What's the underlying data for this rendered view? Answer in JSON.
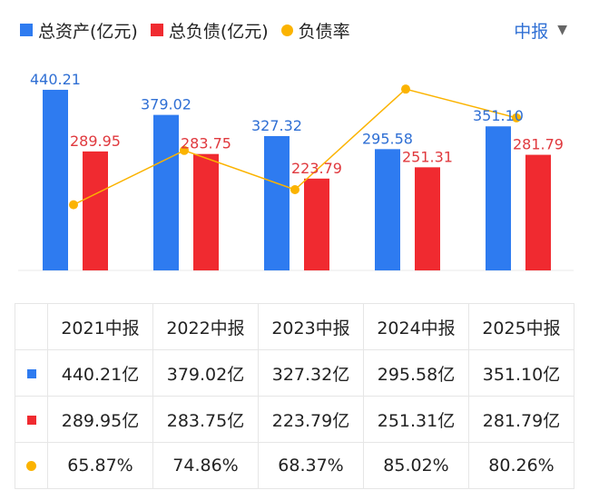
{
  "legend": [
    {
      "label": "总资产(亿元)",
      "color": "#2e7bf0",
      "shape": "square"
    },
    {
      "label": "总负债(亿元)",
      "color": "#f02a30",
      "shape": "square"
    },
    {
      "label": "负债率",
      "color": "#fbb300",
      "shape": "dot"
    }
  ],
  "period_selector": {
    "label": "中报",
    "icon": "caret-down-icon"
  },
  "chart_data": {
    "type": "bar",
    "categories": [
      "2021中报",
      "2022中报",
      "2023中报",
      "2024中报",
      "2025中报"
    ],
    "series": [
      {
        "name": "总资产(亿元)",
        "kind": "bar",
        "color": "#2e7bf0",
        "label_color": "#2f6fd4",
        "values": [
          440.21,
          379.02,
          327.32,
          295.58,
          351.1
        ],
        "labels": [
          "440.21",
          "379.02",
          "327.32",
          "295.58",
          "351.10"
        ]
      },
      {
        "name": "总负债(亿元)",
        "kind": "bar",
        "color": "#f02a30",
        "label_color": "#e0393e",
        "values": [
          289.95,
          283.75,
          223.79,
          251.31,
          281.79
        ],
        "labels": [
          "289.95",
          "283.75",
          "223.79",
          "251.31",
          "281.79"
        ]
      },
      {
        "name": "负债率",
        "kind": "line",
        "color": "#fbb300",
        "values": [
          65.87,
          74.86,
          68.37,
          85.02,
          80.26
        ]
      }
    ],
    "bar_ylim": [
      0,
      460
    ],
    "line_ylim": [
      55,
      90
    ],
    "grid": false
  },
  "table": {
    "header": [
      "2021中报",
      "2022中报",
      "2023中报",
      "2024中报",
      "2025中报"
    ],
    "rows": [
      {
        "marker_color": "#2e7bf0",
        "marker": "square",
        "cells": [
          "440.21亿",
          "379.02亿",
          "327.32亿",
          "295.58亿",
          "351.10亿"
        ]
      },
      {
        "marker_color": "#f02a30",
        "marker": "square",
        "cells": [
          "289.95亿",
          "283.75亿",
          "223.79亿",
          "251.31亿",
          "281.79亿"
        ]
      },
      {
        "marker_color": "#fbb300",
        "marker": "dot",
        "cells": [
          "65.87%",
          "74.86%",
          "68.37%",
          "85.02%",
          "80.26%"
        ]
      }
    ]
  }
}
